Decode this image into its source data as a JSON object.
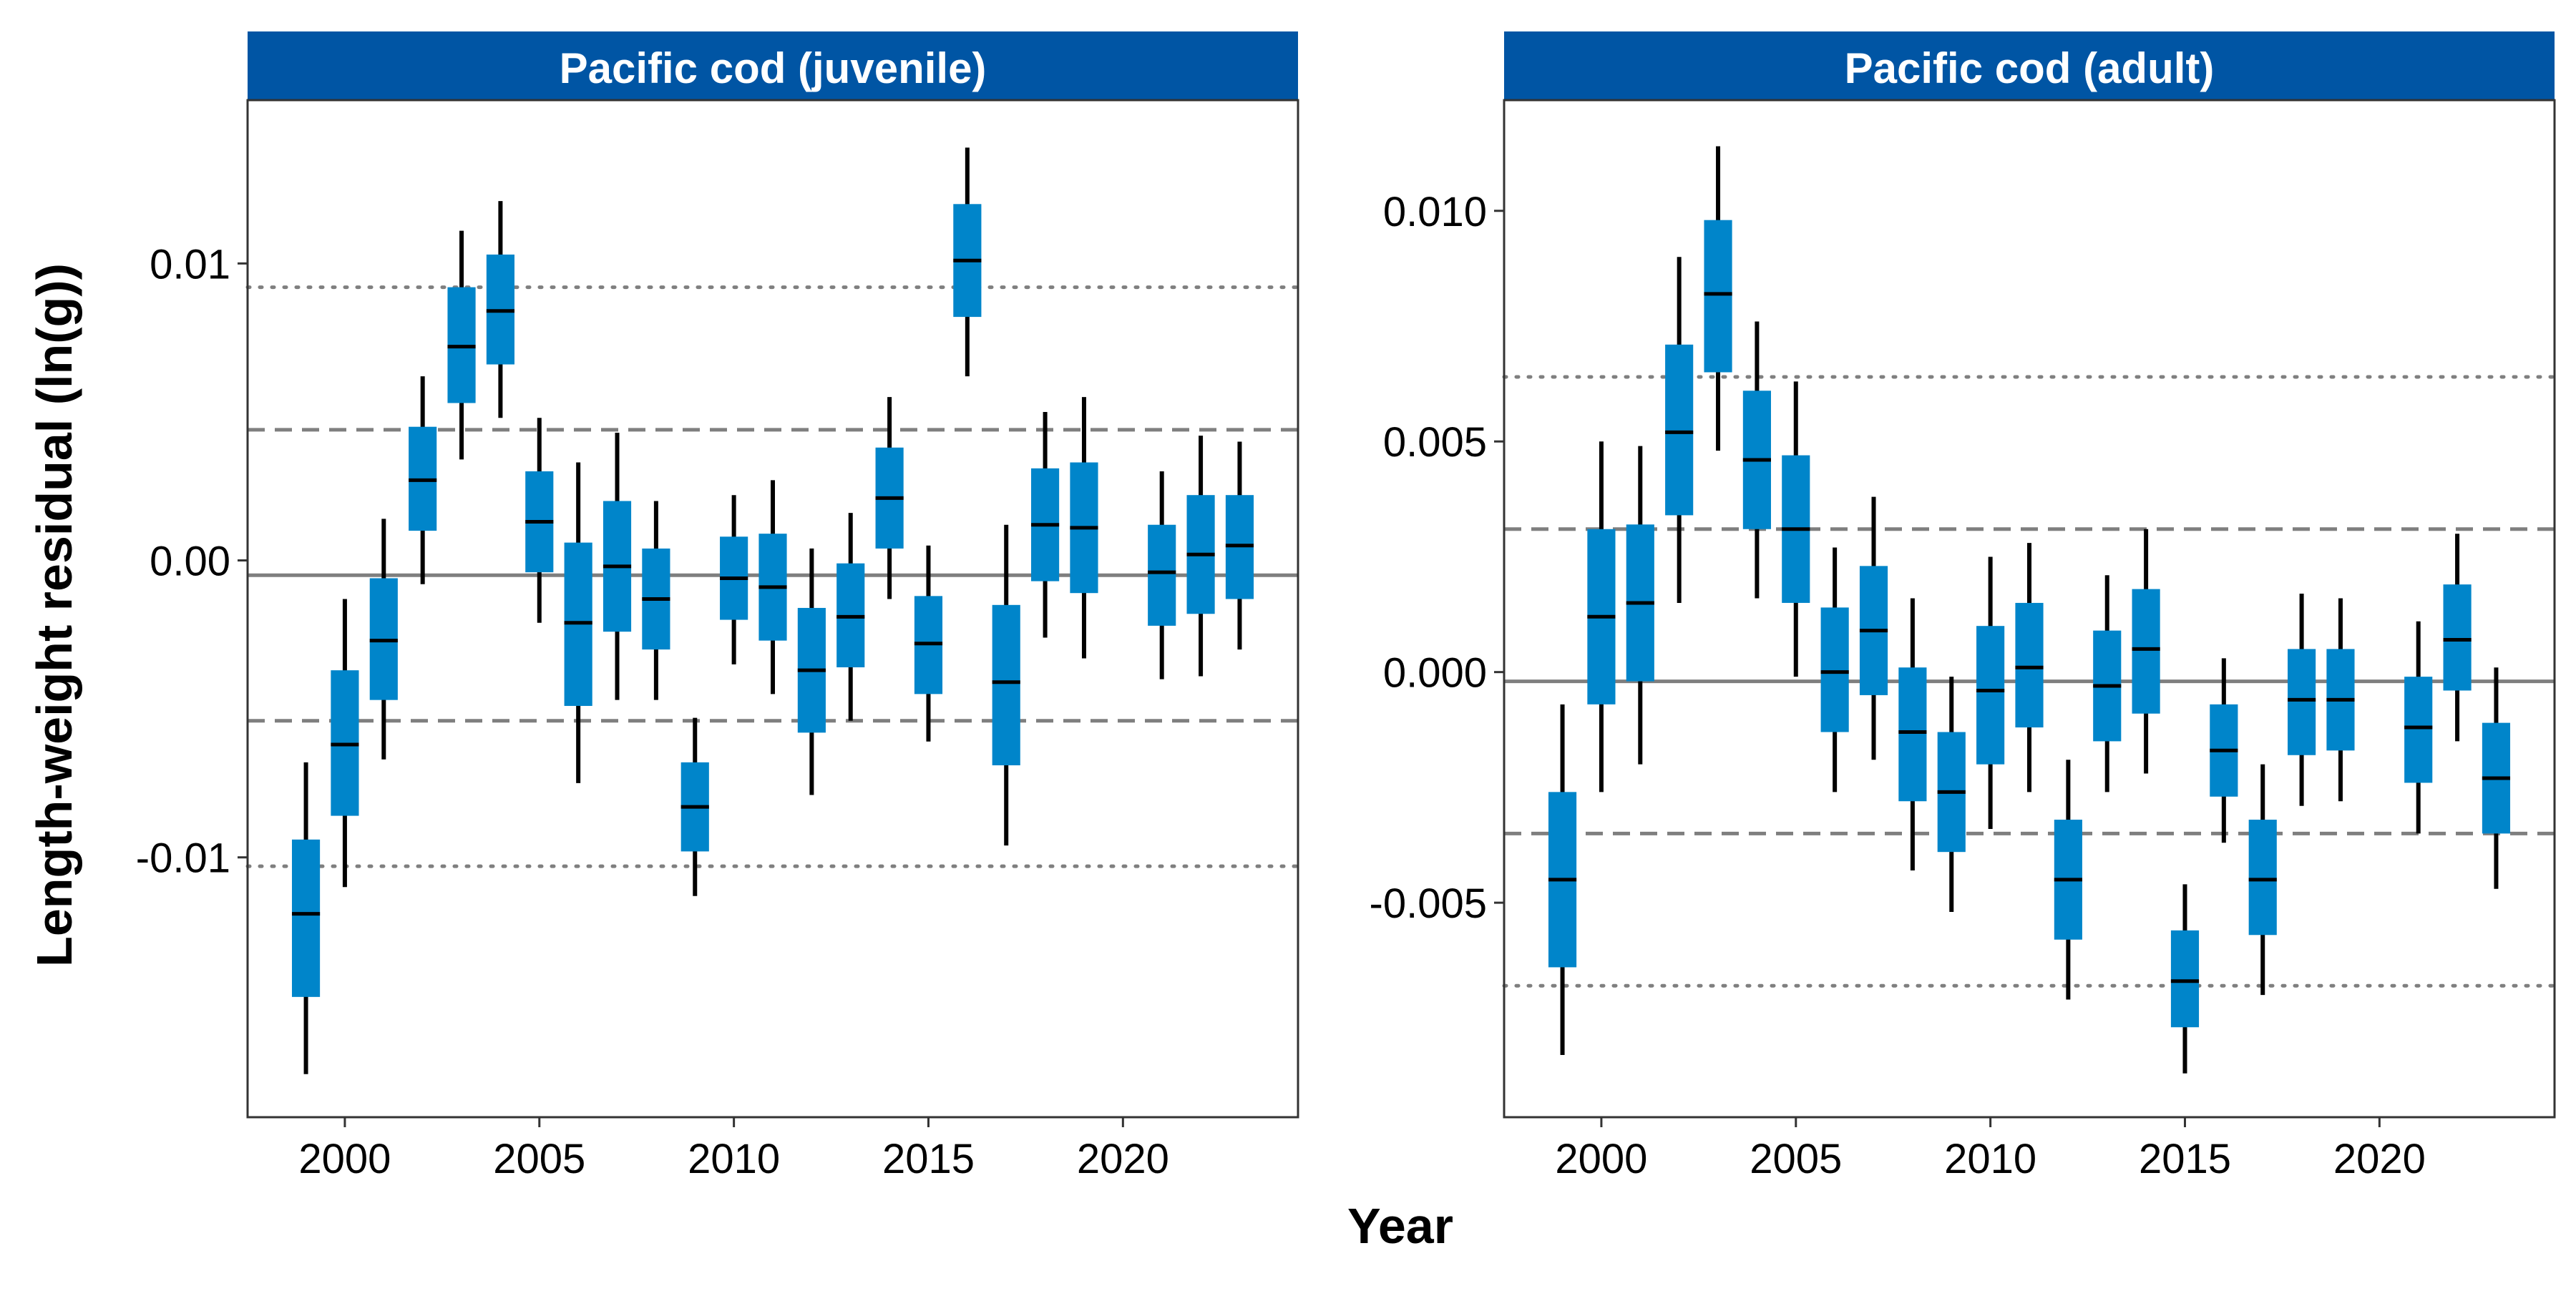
{
  "figure": {
    "xlabel": "Year",
    "ylabel": "Length-weight residual (ln(g))",
    "strip_color": "#0055A4",
    "box_color": "#0085CA",
    "whisker_color": "#000000",
    "zero_line_color": "#7f7f7f",
    "ref_line_color": "#7f7f7f"
  },
  "chart_data": [
    {
      "type": "box",
      "title": "Pacific cod (juvenile)",
      "xlim": [
        1997.5,
        2024.5
      ],
      "ylim": [
        -0.01875,
        0.0155
      ],
      "x_ticks": [
        2000,
        2005,
        2010,
        2015,
        2020
      ],
      "x_tick_labels": [
        "2000",
        "2005",
        "2010",
        "2015",
        "2020"
      ],
      "y_ticks": [
        -0.01,
        0.0,
        0.01
      ],
      "y_tick_labels": [
        "-0.01",
        "0.00",
        "0.01"
      ],
      "reference_lines": {
        "mean": -0.0005,
        "dashed": [
          0.0044,
          -0.0054
        ],
        "dotted": [
          0.0092,
          -0.0103
        ]
      },
      "series": [
        {
          "year": 1999,
          "mean": -0.0119,
          "box": [
            -0.0147,
            -0.0094
          ],
          "whisker": [
            -0.0173,
            -0.0068
          ]
        },
        {
          "year": 2000,
          "mean": -0.0062,
          "box": [
            -0.0086,
            -0.0037
          ],
          "whisker": [
            -0.011,
            -0.0013
          ]
        },
        {
          "year": 2001,
          "mean": -0.0027,
          "box": [
            -0.0047,
            -0.0006
          ],
          "whisker": [
            -0.0067,
            0.0014
          ]
        },
        {
          "year": 2002,
          "mean": 0.0027,
          "box": [
            0.001,
            0.0045
          ],
          "whisker": [
            -0.0008,
            0.0062
          ]
        },
        {
          "year": 2003,
          "mean": 0.0072,
          "box": [
            0.0053,
            0.0092
          ],
          "whisker": [
            0.0034,
            0.0111
          ]
        },
        {
          "year": 2004,
          "mean": 0.0084,
          "box": [
            0.0066,
            0.0103
          ],
          "whisker": [
            0.0048,
            0.0121
          ]
        },
        {
          "year": 2005,
          "mean": 0.0013,
          "box": [
            -0.0004,
            0.003
          ],
          "whisker": [
            -0.0021,
            0.0048
          ]
        },
        {
          "year": 2006,
          "mean": -0.0021,
          "box": [
            -0.0049,
            0.0006
          ],
          "whisker": [
            -0.0075,
            0.0033
          ]
        },
        {
          "year": 2007,
          "mean": -0.0002,
          "box": [
            -0.0024,
            0.002
          ],
          "whisker": [
            -0.0047,
            0.0043
          ]
        },
        {
          "year": 2008,
          "mean": -0.0013,
          "box": [
            -0.003,
            0.0004
          ],
          "whisker": [
            -0.0047,
            0.002
          ]
        },
        {
          "year": 2009,
          "mean": -0.0083,
          "box": [
            -0.0098,
            -0.0068
          ],
          "whisker": [
            -0.0113,
            -0.0053
          ]
        },
        {
          "year": 2010,
          "mean": -0.0006,
          "box": [
            -0.002,
            0.0008
          ],
          "whisker": [
            -0.0035,
            0.0022
          ]
        },
        {
          "year": 2011,
          "mean": -0.0009,
          "box": [
            -0.0027,
            0.0009
          ],
          "whisker": [
            -0.0045,
            0.0027
          ]
        },
        {
          "year": 2012,
          "mean": -0.0037,
          "box": [
            -0.0058,
            -0.0016
          ],
          "whisker": [
            -0.0079,
            0.0004
          ]
        },
        {
          "year": 2013,
          "mean": -0.0019,
          "box": [
            -0.0036,
            -0.0001
          ],
          "whisker": [
            -0.0054,
            0.0016
          ]
        },
        {
          "year": 2014,
          "mean": 0.0021,
          "box": [
            0.0004,
            0.0038
          ],
          "whisker": [
            -0.0013,
            0.0055
          ]
        },
        {
          "year": 2015,
          "mean": -0.0028,
          "box": [
            -0.0045,
            -0.0012
          ],
          "whisker": [
            -0.0061,
            0.0005
          ]
        },
        {
          "year": 2016,
          "mean": 0.0101,
          "box": [
            0.0082,
            0.012
          ],
          "whisker": [
            0.0062,
            0.0139
          ]
        },
        {
          "year": 2017,
          "mean": -0.0041,
          "box": [
            -0.0069,
            -0.0015
          ],
          "whisker": [
            -0.0096,
            0.0012
          ]
        },
        {
          "year": 2018,
          "mean": 0.0012,
          "box": [
            -0.0007,
            0.0031
          ],
          "whisker": [
            -0.0026,
            0.005
          ]
        },
        {
          "year": 2019,
          "mean": 0.0011,
          "box": [
            -0.0011,
            0.0033
          ],
          "whisker": [
            -0.0033,
            0.0055
          ]
        },
        {
          "year": 2021,
          "mean": -0.0004,
          "box": [
            -0.0022,
            0.0012
          ],
          "whisker": [
            -0.004,
            0.003
          ]
        },
        {
          "year": 2022,
          "mean": 0.0002,
          "box": [
            -0.0018,
            0.0022
          ],
          "whisker": [
            -0.0039,
            0.0042
          ]
        },
        {
          "year": 2023,
          "mean": 0.0005,
          "box": [
            -0.0013,
            0.0022
          ],
          "whisker": [
            -0.003,
            0.004
          ]
        }
      ]
    },
    {
      "type": "box",
      "title": "Pacific cod (adult)",
      "xlim": [
        1997.5,
        2024.5
      ],
      "ylim": [
        -0.00965,
        0.0124
      ],
      "x_ticks": [
        2000,
        2005,
        2010,
        2015,
        2020
      ],
      "x_tick_labels": [
        "2000",
        "2005",
        "2010",
        "2015",
        "2020"
      ],
      "y_ticks": [
        -0.005,
        0.0,
        0.005,
        0.01
      ],
      "y_tick_labels": [
        "-0.005",
        "0.000",
        "0.005",
        "0.010"
      ],
      "reference_lines": {
        "mean": -0.0002,
        "dashed": [
          0.0031,
          -0.0035
        ],
        "dotted": [
          0.0064,
          -0.0068
        ]
      },
      "series": [
        {
          "year": 1999,
          "mean": -0.0045,
          "box": [
            -0.0064,
            -0.0026
          ],
          "whisker": [
            -0.0083,
            -0.0007
          ]
        },
        {
          "year": 2000,
          "mean": 0.0012,
          "box": [
            -0.0007,
            0.0031
          ],
          "whisker": [
            -0.0026,
            0.005
          ]
        },
        {
          "year": 2001,
          "mean": 0.0015,
          "box": [
            -0.0002,
            0.0032
          ],
          "whisker": [
            -0.002,
            0.0049
          ]
        },
        {
          "year": 2002,
          "mean": 0.0052,
          "box": [
            0.0034,
            0.0071
          ],
          "whisker": [
            0.0015,
            0.009
          ]
        },
        {
          "year": 2003,
          "mean": 0.0082,
          "box": [
            0.0065,
            0.0098
          ],
          "whisker": [
            0.0048,
            0.0114
          ]
        },
        {
          "year": 2004,
          "mean": 0.0046,
          "box": [
            0.0031,
            0.0061
          ],
          "whisker": [
            0.0016,
            0.0076
          ]
        },
        {
          "year": 2005,
          "mean": 0.0031,
          "box": [
            0.0015,
            0.0047
          ],
          "whisker": [
            -0.0001,
            0.0063
          ]
        },
        {
          "year": 2006,
          "mean": 0.0,
          "box": [
            -0.0013,
            0.0014
          ],
          "whisker": [
            -0.0026,
            0.0027
          ]
        },
        {
          "year": 2007,
          "mean": 0.0009,
          "box": [
            -0.0005,
            0.0023
          ],
          "whisker": [
            -0.0019,
            0.0038
          ]
        },
        {
          "year": 2008,
          "mean": -0.0013,
          "box": [
            -0.0028,
            0.0001
          ],
          "whisker": [
            -0.0043,
            0.0016
          ]
        },
        {
          "year": 2009,
          "mean": -0.0026,
          "box": [
            -0.0039,
            -0.0013
          ],
          "whisker": [
            -0.0052,
            -0.0001
          ]
        },
        {
          "year": 2010,
          "mean": -0.0004,
          "box": [
            -0.002,
            0.001
          ],
          "whisker": [
            -0.0034,
            0.0025
          ]
        },
        {
          "year": 2011,
          "mean": 0.0001,
          "box": [
            -0.0012,
            0.0015
          ],
          "whisker": [
            -0.0026,
            0.0028
          ]
        },
        {
          "year": 2012,
          "mean": -0.0045,
          "box": [
            -0.0058,
            -0.0032
          ],
          "whisker": [
            -0.0071,
            -0.0019
          ]
        },
        {
          "year": 2013,
          "mean": -0.0003,
          "box": [
            -0.0015,
            0.0009
          ],
          "whisker": [
            -0.0026,
            0.0021
          ]
        },
        {
          "year": 2014,
          "mean": 0.0005,
          "box": [
            -0.0009,
            0.0018
          ],
          "whisker": [
            -0.0022,
            0.0031
          ]
        },
        {
          "year": 2015,
          "mean": -0.0067,
          "box": [
            -0.0077,
            -0.0056
          ],
          "whisker": [
            -0.0087,
            -0.0046
          ]
        },
        {
          "year": 2016,
          "mean": -0.0017,
          "box": [
            -0.0027,
            -0.0007
          ],
          "whisker": [
            -0.0037,
            0.0003
          ]
        },
        {
          "year": 2017,
          "mean": -0.0045,
          "box": [
            -0.0057,
            -0.0032
          ],
          "whisker": [
            -0.007,
            -0.002
          ]
        },
        {
          "year": 2018,
          "mean": -0.0006,
          "box": [
            -0.0018,
            0.0005
          ],
          "whisker": [
            -0.0029,
            0.0017
          ]
        },
        {
          "year": 2019,
          "mean": -0.0006,
          "box": [
            -0.0017,
            0.0005
          ],
          "whisker": [
            -0.0028,
            0.0016
          ]
        },
        {
          "year": 2021,
          "mean": -0.0012,
          "box": [
            -0.0024,
            -0.0001
          ],
          "whisker": [
            -0.0035,
            0.0011
          ]
        },
        {
          "year": 2022,
          "mean": 0.0007,
          "box": [
            -0.0004,
            0.0019
          ],
          "whisker": [
            -0.0015,
            0.003
          ]
        },
        {
          "year": 2023,
          "mean": -0.0023,
          "box": [
            -0.0035,
            -0.0011
          ],
          "whisker": [
            -0.0047,
            0.0001
          ]
        }
      ]
    }
  ]
}
